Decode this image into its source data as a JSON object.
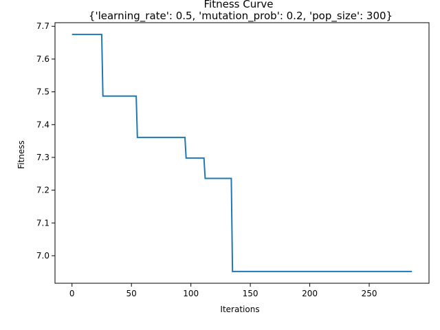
{
  "chart_data": {
    "type": "line",
    "title": "Fitness Curve",
    "subtitle": "{'learning_rate': 0.5, 'mutation_prob': 0.2, 'pop_size': 300}",
    "xlabel": "Iterations",
    "ylabel": "Fitness",
    "xlim": [
      -14.3,
      300.3
    ],
    "ylim": [
      6.916,
      7.711
    ],
    "xticks": [
      0,
      50,
      100,
      150,
      200,
      250
    ],
    "yticks": [
      7.0,
      7.1,
      7.2,
      7.3,
      7.4,
      7.5,
      7.6,
      7.7
    ],
    "grid": false,
    "line_color": "#1f77b4",
    "series": [
      {
        "x": [
          0,
          25,
          26,
          54,
          55,
          95,
          96,
          111,
          112,
          134,
          135,
          286
        ],
        "y": [
          7.675,
          7.675,
          7.487,
          7.487,
          7.361,
          7.361,
          7.298,
          7.298,
          7.236,
          7.236,
          6.952,
          6.952
        ]
      }
    ]
  }
}
